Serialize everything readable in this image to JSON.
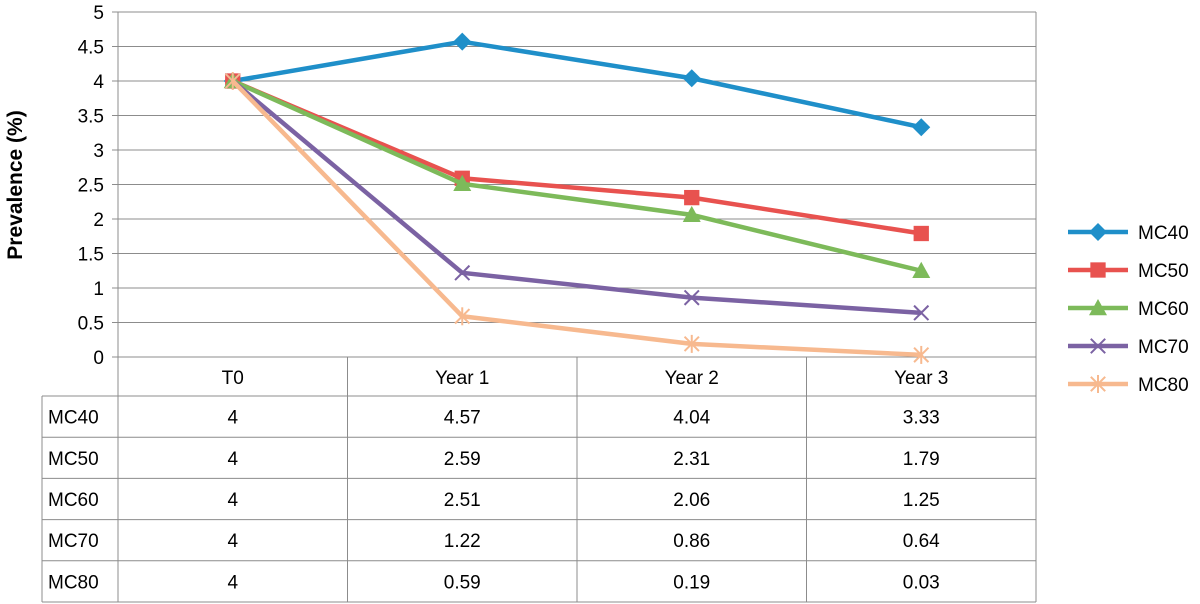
{
  "chart_data": {
    "type": "line",
    "title": "",
    "xlabel": "",
    "ylabel": "Prevalence (%)",
    "ylim": [
      0,
      5
    ],
    "yticks": [
      "0",
      "0.5",
      "1",
      "1.5",
      "2",
      "2.5",
      "3",
      "3.5",
      "4",
      "4.5",
      "5"
    ],
    "categories": [
      "T0",
      "Year 1",
      "Year 2",
      "Year 3"
    ],
    "grid": true,
    "legend_position": "right",
    "series": [
      {
        "name": "MC40",
        "values": [
          4,
          4.57,
          4.04,
          3.33
        ],
        "labels": [
          "4",
          "4.57",
          "4.04",
          "3.33"
        ],
        "color": "#1f8fc9",
        "marker": "diamond"
      },
      {
        "name": "MC50",
        "values": [
          4,
          2.59,
          2.31,
          1.79
        ],
        "labels": [
          "4",
          "2.59",
          "2.31",
          "1.79"
        ],
        "color": "#e8524f",
        "marker": "square"
      },
      {
        "name": "MC60",
        "values": [
          4,
          2.51,
          2.06,
          1.25
        ],
        "labels": [
          "4",
          "2.51",
          "2.06",
          "1.25"
        ],
        "color": "#7dba5a",
        "marker": "triangle"
      },
      {
        "name": "MC70",
        "values": [
          4,
          1.22,
          0.86,
          0.64
        ],
        "labels": [
          "4",
          "1.22",
          "0.86",
          "0.64"
        ],
        "color": "#7b62a3",
        "marker": "x"
      },
      {
        "name": "MC80",
        "values": [
          4,
          0.59,
          0.19,
          0.03
        ],
        "labels": [
          "4",
          "0.59",
          "0.19",
          "0.03"
        ],
        "color": "#f7b98f",
        "marker": "star"
      }
    ]
  }
}
